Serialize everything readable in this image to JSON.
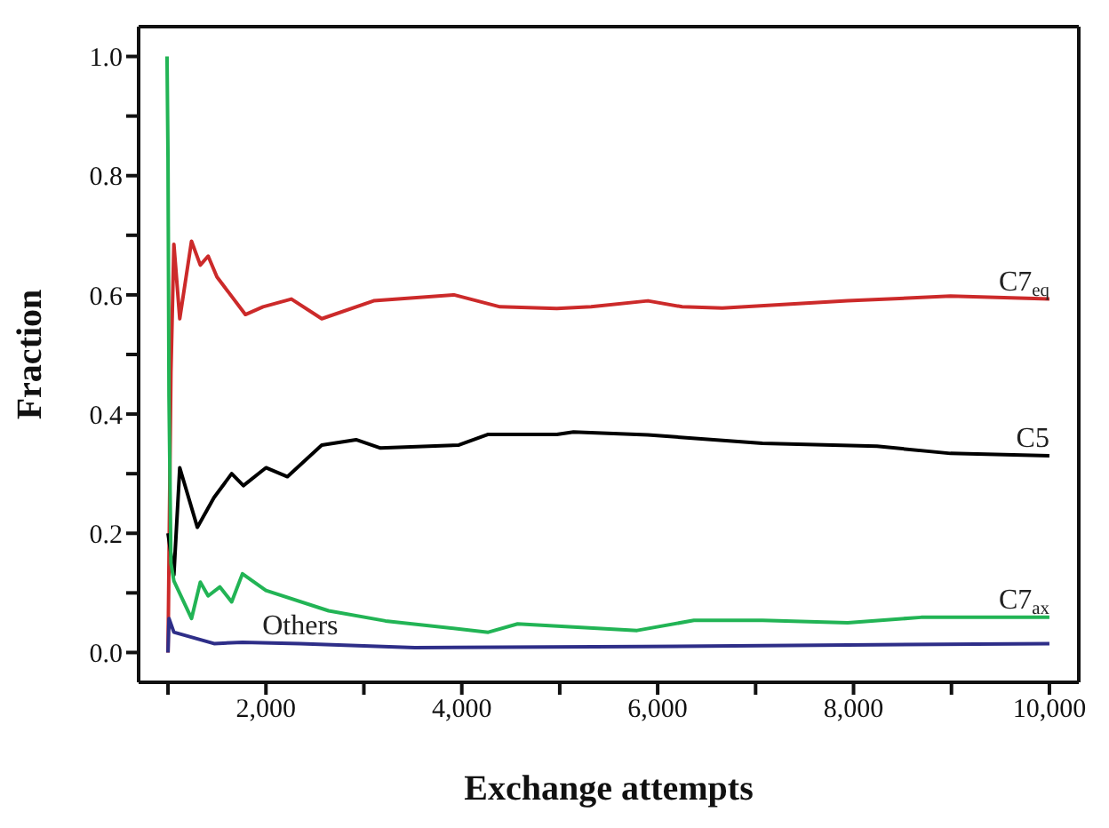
{
  "chart_data": {
    "type": "line",
    "xlabel": "Exchange attempts",
    "ylabel": "Fraction",
    "xlim": [
      700,
      10300
    ],
    "xticks": [
      {
        "value": 1000,
        "label": null
      },
      {
        "value": 2000,
        "label": "2,000"
      },
      {
        "value": 3000,
        "label": null
      },
      {
        "value": 4000,
        "label": "4,000"
      },
      {
        "value": 5000,
        "label": null
      },
      {
        "value": 6000,
        "label": "6,000"
      },
      {
        "value": 7000,
        "label": null
      },
      {
        "value": 8000,
        "label": "8,000"
      },
      {
        "value": 9000,
        "label": null
      },
      {
        "value": 10000,
        "label": "10,000"
      }
    ],
    "ylim": [
      -0.05,
      1.05
    ],
    "yticks": [
      {
        "value": 0,
        "label": "0.0"
      },
      {
        "value": 0.1,
        "label": null
      },
      {
        "value": 0.2,
        "label": "0.2"
      },
      {
        "value": 0.3,
        "label": null
      },
      {
        "value": 0.4,
        "label": "0.4"
      },
      {
        "value": 0.5,
        "label": null
      },
      {
        "value": 0.6,
        "label": "0.6"
      },
      {
        "value": 0.7,
        "label": null
      },
      {
        "value": 0.8,
        "label": "0.8"
      },
      {
        "value": 0.9,
        "label": null
      },
      {
        "value": 1.0,
        "label": "1.0"
      }
    ],
    "grid": false,
    "legend": false,
    "marker": "none",
    "line_style": "solid",
    "series": [
      {
        "name": "C7$_{eq}$",
        "color": "#cc2a2a",
        "x": [
          1000,
          1030,
          1060,
          1120,
          1240,
          1330,
          1410,
          1500,
          1790,
          1970,
          2260,
          2570,
          3100,
          3920,
          4390,
          4970,
          5320,
          5900,
          6250,
          6660,
          7940,
          8990,
          10000
        ],
        "values": [
          0,
          0.47,
          0.685,
          0.56,
          0.69,
          0.65,
          0.665,
          0.63,
          0.567,
          0.58,
          0.593,
          0.56,
          0.59,
          0.6,
          0.58,
          0.577,
          0.58,
          0.59,
          0.58,
          0.578,
          0.59,
          0.598,
          0.593
        ]
      },
      {
        "name": "C5",
        "color": "#000000",
        "x": [
          1000,
          1060,
          1120,
          1300,
          1470,
          1650,
          1770,
          2000,
          2220,
          2570,
          2920,
          3170,
          3970,
          4270,
          4970,
          5140,
          5900,
          7070,
          8240,
          8990,
          10000
        ],
        "values": [
          0.2,
          0.13,
          0.31,
          0.21,
          0.26,
          0.3,
          0.28,
          0.31,
          0.295,
          0.348,
          0.357,
          0.343,
          0.348,
          0.366,
          0.366,
          0.37,
          0.365,
          0.351,
          0.346,
          0.334,
          0.33
        ]
      },
      {
        "name": "C7$_{ax}$",
        "color": "#22b455",
        "x": [
          990,
          1000,
          1010,
          1030,
          1060,
          1240,
          1330,
          1410,
          1530,
          1650,
          1760,
          2000,
          2640,
          3220,
          4270,
          4570,
          5790,
          6370,
          7070,
          7940,
          8690,
          10000
        ],
        "values": [
          1.0,
          0.83,
          0.43,
          0.15,
          0.12,
          0.057,
          0.118,
          0.095,
          0.11,
          0.085,
          0.132,
          0.104,
          0.07,
          0.053,
          0.034,
          0.048,
          0.037,
          0.054,
          0.054,
          0.05,
          0.059,
          0.059
        ]
      },
      {
        "name": "Others",
        "color": "#2e2e88",
        "x": [
          1000,
          1010,
          1060,
          1470,
          1760,
          2350,
          3520,
          5840,
          10000
        ],
        "values": [
          0,
          0.057,
          0.034,
          0.015,
          0.017,
          0.015,
          0.008,
          0.01,
          0.015
        ]
      }
    ]
  }
}
